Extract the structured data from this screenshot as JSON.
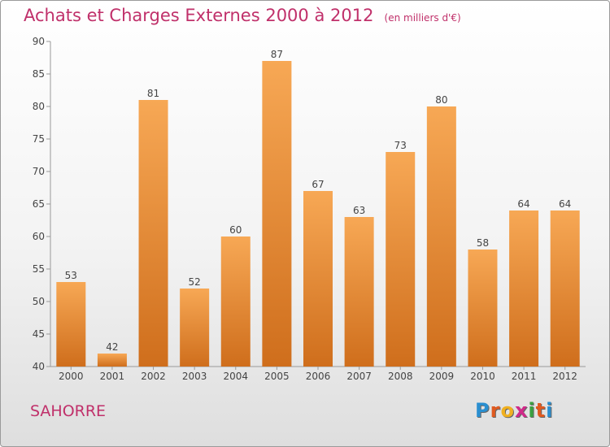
{
  "chart_data": {
    "type": "bar",
    "title": "Achats et Charges Externes 2000 à 2012",
    "subtitle": "(en milliers d'€)",
    "categories": [
      "2000",
      "2001",
      "2002",
      "2003",
      "2004",
      "2005",
      "2006",
      "2007",
      "2008",
      "2009",
      "2010",
      "2011",
      "2012"
    ],
    "values": [
      53,
      42,
      81,
      52,
      60,
      87,
      67,
      63,
      73,
      80,
      58,
      64,
      64
    ],
    "ylim": [
      40,
      90
    ],
    "yticks": [
      40,
      45,
      50,
      55,
      60,
      65,
      70,
      75,
      80,
      85,
      90
    ],
    "grid": false,
    "bar_color": "#f0a050"
  },
  "footer": {
    "commune": "SAHORRE",
    "logo_letters": [
      "P",
      "r",
      "o",
      "x",
      "i",
      "t",
      "i"
    ]
  },
  "colors": {
    "title": "#c0306a",
    "logo": [
      "#2a8fd0",
      "#e05a20",
      "#f0b020",
      "#d02a8a",
      "#3aa040",
      "#e05a20",
      "#2a8fd0"
    ]
  }
}
